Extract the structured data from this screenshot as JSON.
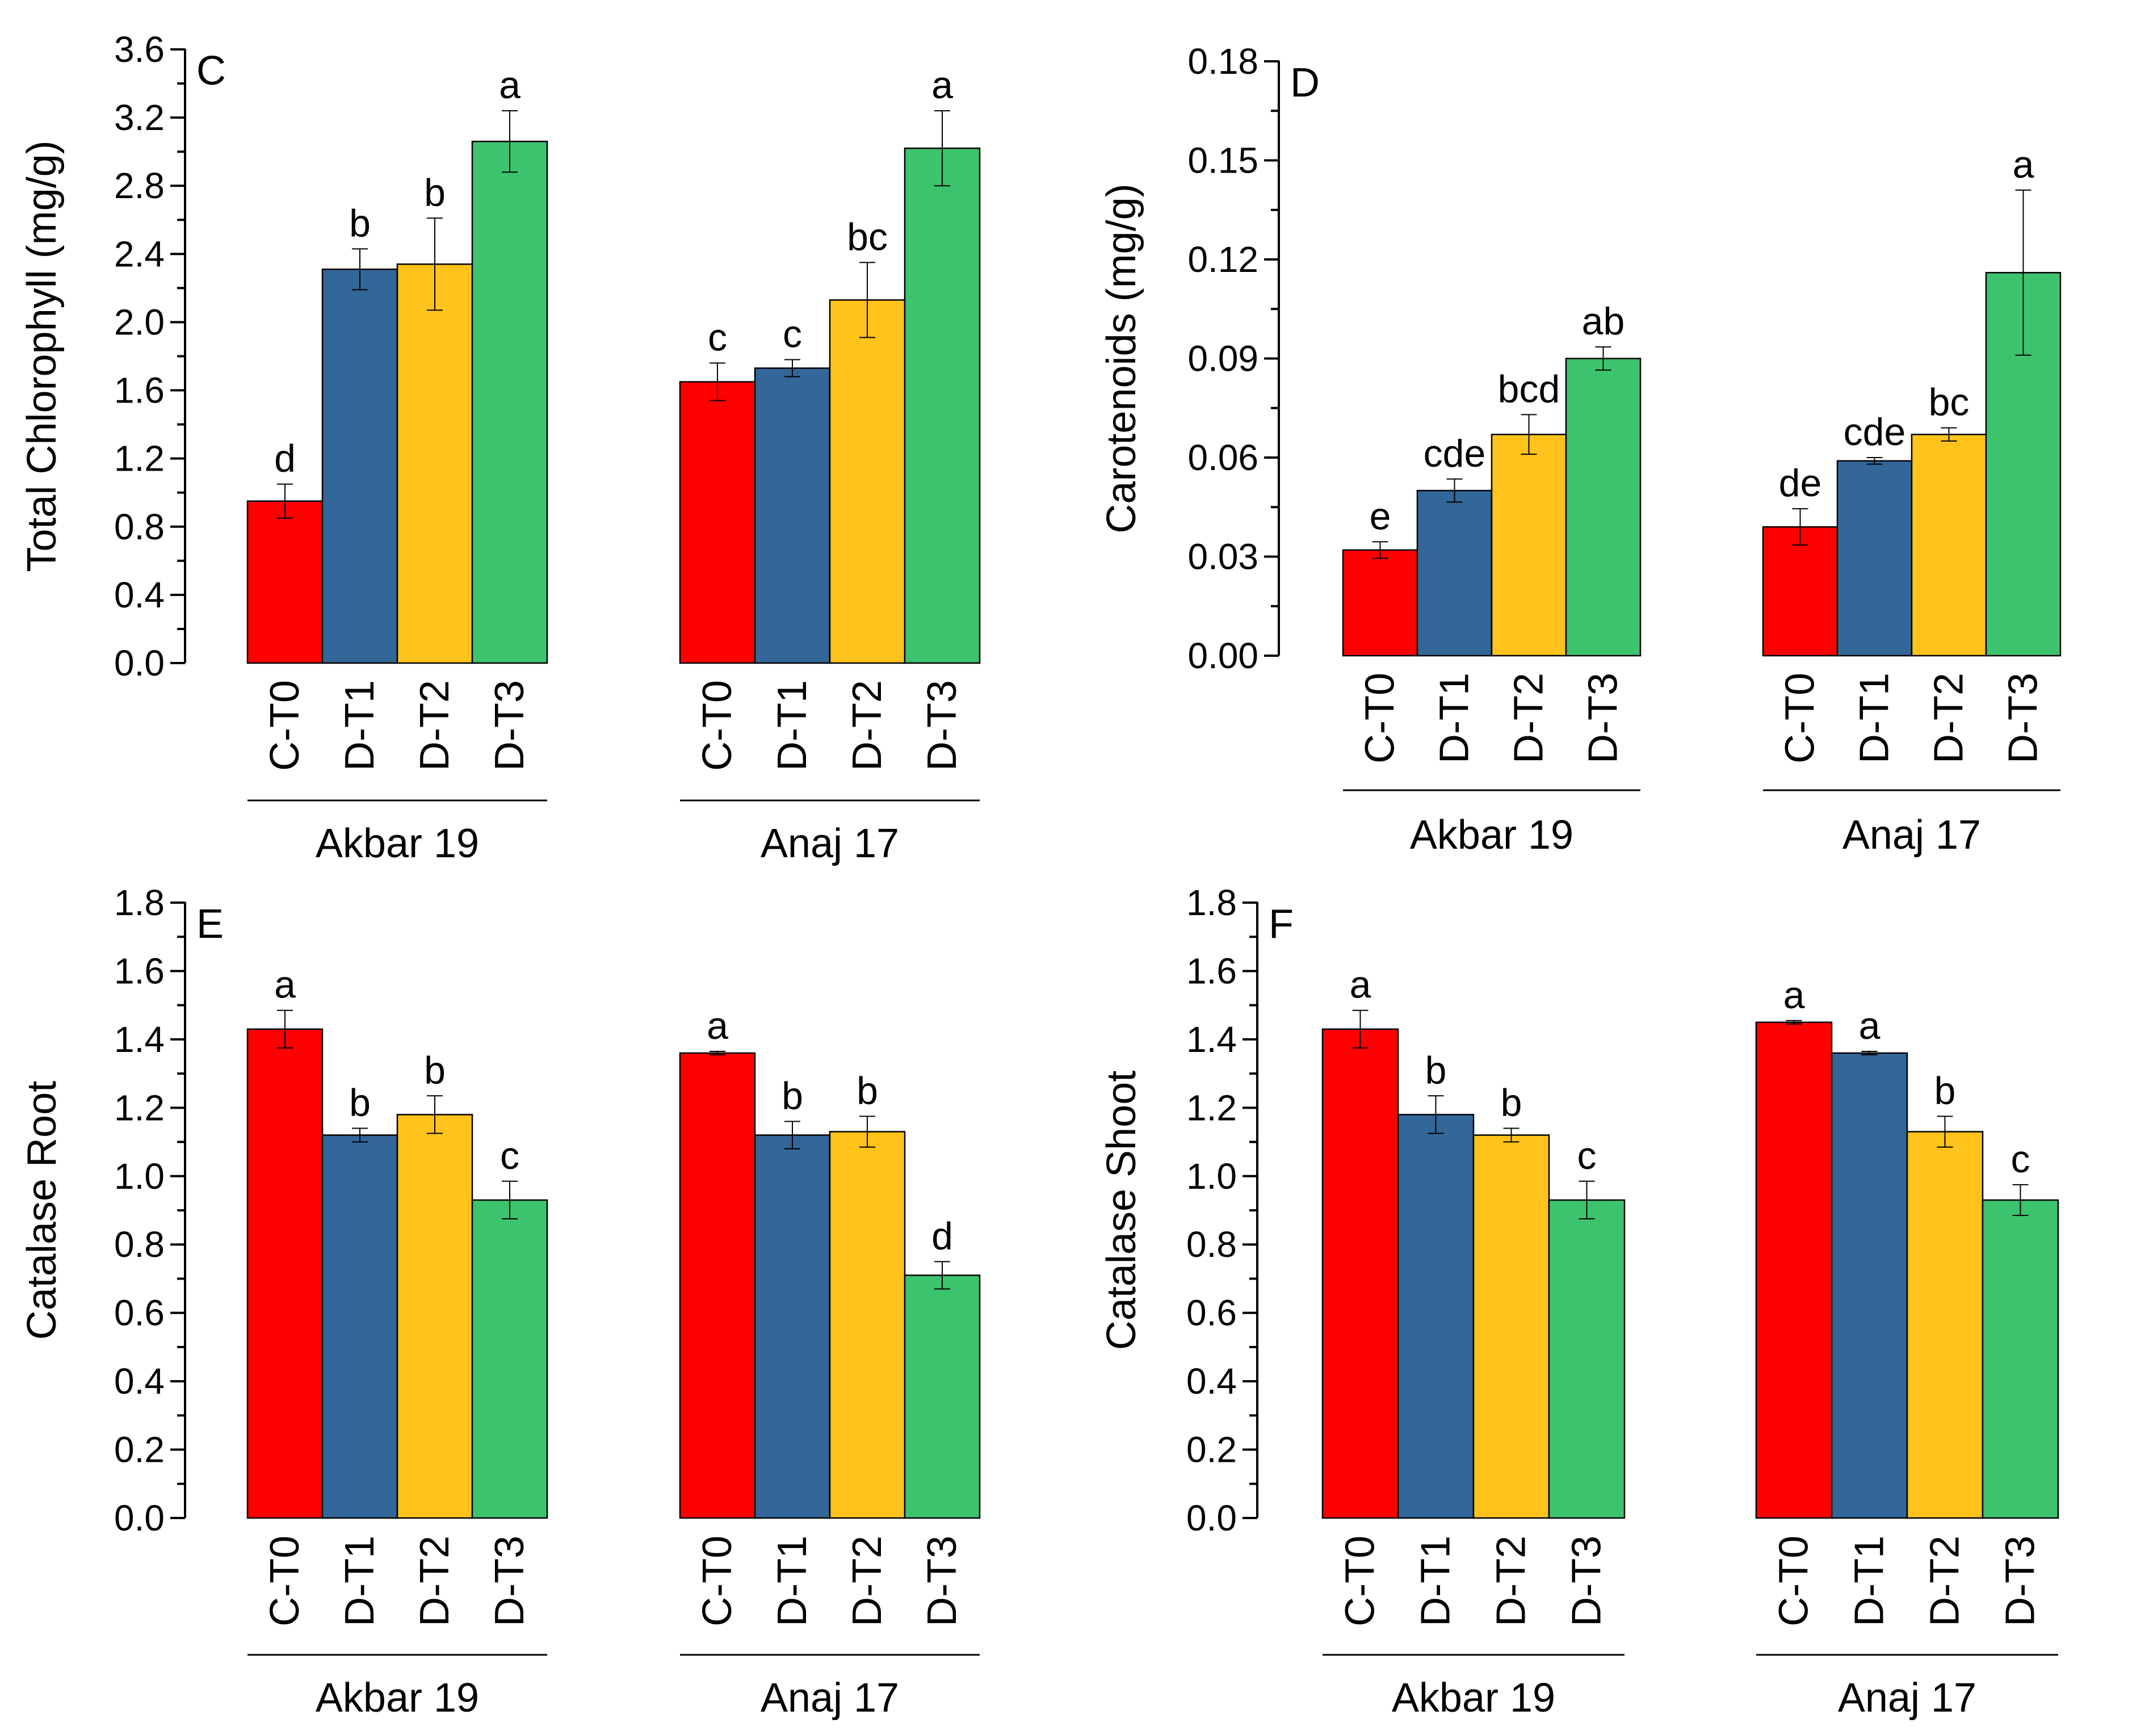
{
  "colors": {
    "C-T0": "#ff0000",
    "D-T1": "#336699",
    "D-T2": "#ffc31b",
    "D-T3": "#3cc36e",
    "axis": "#000000"
  },
  "chart_data": [
    {
      "id": "C",
      "type": "bar",
      "panel_letter": "C",
      "ylabel": "Total Chlorophyll  (mg/g)",
      "ylim": [
        0,
        3.6
      ],
      "yticks": [
        "0.0",
        "0.4",
        "0.8",
        "1.2",
        "1.6",
        "2.0",
        "2.4",
        "2.8",
        "3.2",
        "3.6"
      ],
      "categories": [
        "C-T0",
        "D-T1",
        "D-T2",
        "D-T3"
      ],
      "groups": [
        {
          "name": "Akbar 19",
          "values": [
            0.95,
            2.31,
            2.34,
            3.06
          ],
          "errors": [
            0.1,
            0.12,
            0.27,
            0.18
          ],
          "letters": [
            "d",
            "b",
            "b",
            "a"
          ]
        },
        {
          "name": "Anaj 17",
          "values": [
            1.65,
            1.73,
            2.13,
            3.02
          ],
          "errors": [
            0.11,
            0.05,
            0.22,
            0.22
          ],
          "letters": [
            "c",
            "c",
            "bc",
            "a"
          ]
        }
      ]
    },
    {
      "id": "D",
      "type": "bar",
      "panel_letter": "D",
      "ylabel": "Carotenoids (mg/g)",
      "ylim": [
        0,
        0.18
      ],
      "yticks": [
        "0.00",
        "0.03",
        "0.06",
        "0.09",
        "0.12",
        "0.15",
        "0.18"
      ],
      "categories": [
        "C-T0",
        "D-T1",
        "D-T2",
        "D-T3"
      ],
      "groups": [
        {
          "name": "Akbar 19",
          "values": [
            0.032,
            0.05,
            0.067,
            0.09
          ],
          "errors": [
            0.0025,
            0.0035,
            0.006,
            0.0035
          ],
          "letters": [
            "e",
            "cde",
            "bcd",
            "ab"
          ]
        },
        {
          "name": "Anaj 17",
          "values": [
            0.039,
            0.059,
            0.067,
            0.116
          ],
          "errors": [
            0.0055,
            0.001,
            0.002,
            0.025
          ],
          "letters": [
            "de",
            "cde",
            "bc",
            "a"
          ]
        }
      ]
    },
    {
      "id": "E",
      "type": "bar",
      "panel_letter": "E",
      "ylabel": "Catalase Root",
      "ylim": [
        0,
        1.8
      ],
      "yticks": [
        "0.0",
        "0.2",
        "0.4",
        "0.6",
        "0.8",
        "1.0",
        "1.2",
        "1.4",
        "1.6",
        "1.8"
      ],
      "categories": [
        "C-T0",
        "D-T1",
        "D-T2",
        "D-T3"
      ],
      "groups": [
        {
          "name": "Akbar 19",
          "values": [
            1.43,
            1.12,
            1.18,
            0.93
          ],
          "errors": [
            0.055,
            0.02,
            0.055,
            0.055
          ],
          "letters": [
            "a",
            "b",
            "b",
            "c"
          ]
        },
        {
          "name": "Anaj 17",
          "values": [
            1.36,
            1.12,
            1.13,
            0.71
          ],
          "errors": [
            0.005,
            0.04,
            0.045,
            0.04
          ],
          "letters": [
            "a",
            "b",
            "b",
            "d"
          ]
        }
      ]
    },
    {
      "id": "F",
      "type": "bar",
      "panel_letter": "F",
      "ylabel": "Catalase Shoot",
      "ylim": [
        0,
        1.8
      ],
      "yticks": [
        "0.0",
        "0.2",
        "0.4",
        "0.6",
        "0.8",
        "1.0",
        "1.2",
        "1.4",
        "1.6",
        "1.8"
      ],
      "categories": [
        "C-T0",
        "D-T1",
        "D-T2",
        "D-T3"
      ],
      "groups": [
        {
          "name": "Akbar 19",
          "values": [
            1.43,
            1.18,
            1.12,
            0.93
          ],
          "errors": [
            0.055,
            0.055,
            0.02,
            0.055
          ],
          "letters": [
            "a",
            "b",
            "b",
            "c"
          ]
        },
        {
          "name": "Anaj 17",
          "values": [
            1.45,
            1.36,
            1.13,
            0.93
          ],
          "errors": [
            0.005,
            0.005,
            0.045,
            0.045
          ],
          "letters": [
            "a",
            "a",
            "b",
            "c"
          ]
        }
      ]
    }
  ]
}
